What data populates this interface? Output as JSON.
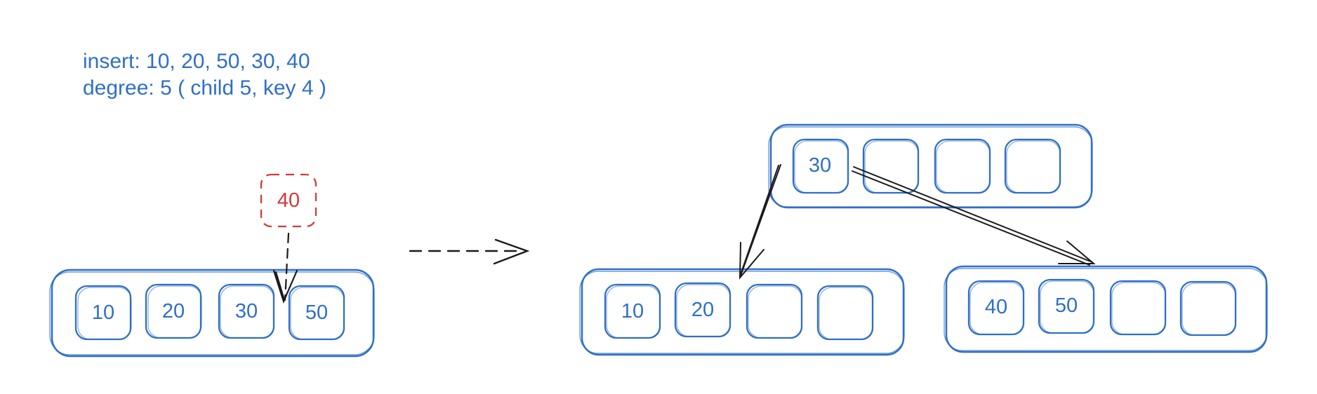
{
  "notes": {
    "insert_line": "insert: 10, 20, 50, 30, 40",
    "degree_line": "degree: 5 ( child 5, key 4 )"
  },
  "before": {
    "keys": [
      "10",
      "20",
      "30",
      "50"
    ],
    "new_key": "40"
  },
  "after": {
    "root_keys": [
      "30",
      "",
      "",
      ""
    ],
    "left_child_keys": [
      "10",
      "20",
      "",
      ""
    ],
    "right_child_keys": [
      "40",
      "50",
      "",
      ""
    ]
  },
  "colors": {
    "node_stroke": "#2f6fc7",
    "new_key": "#d33a3a",
    "arrow": "#1a1a1a",
    "text": "#2f6fc7"
  }
}
